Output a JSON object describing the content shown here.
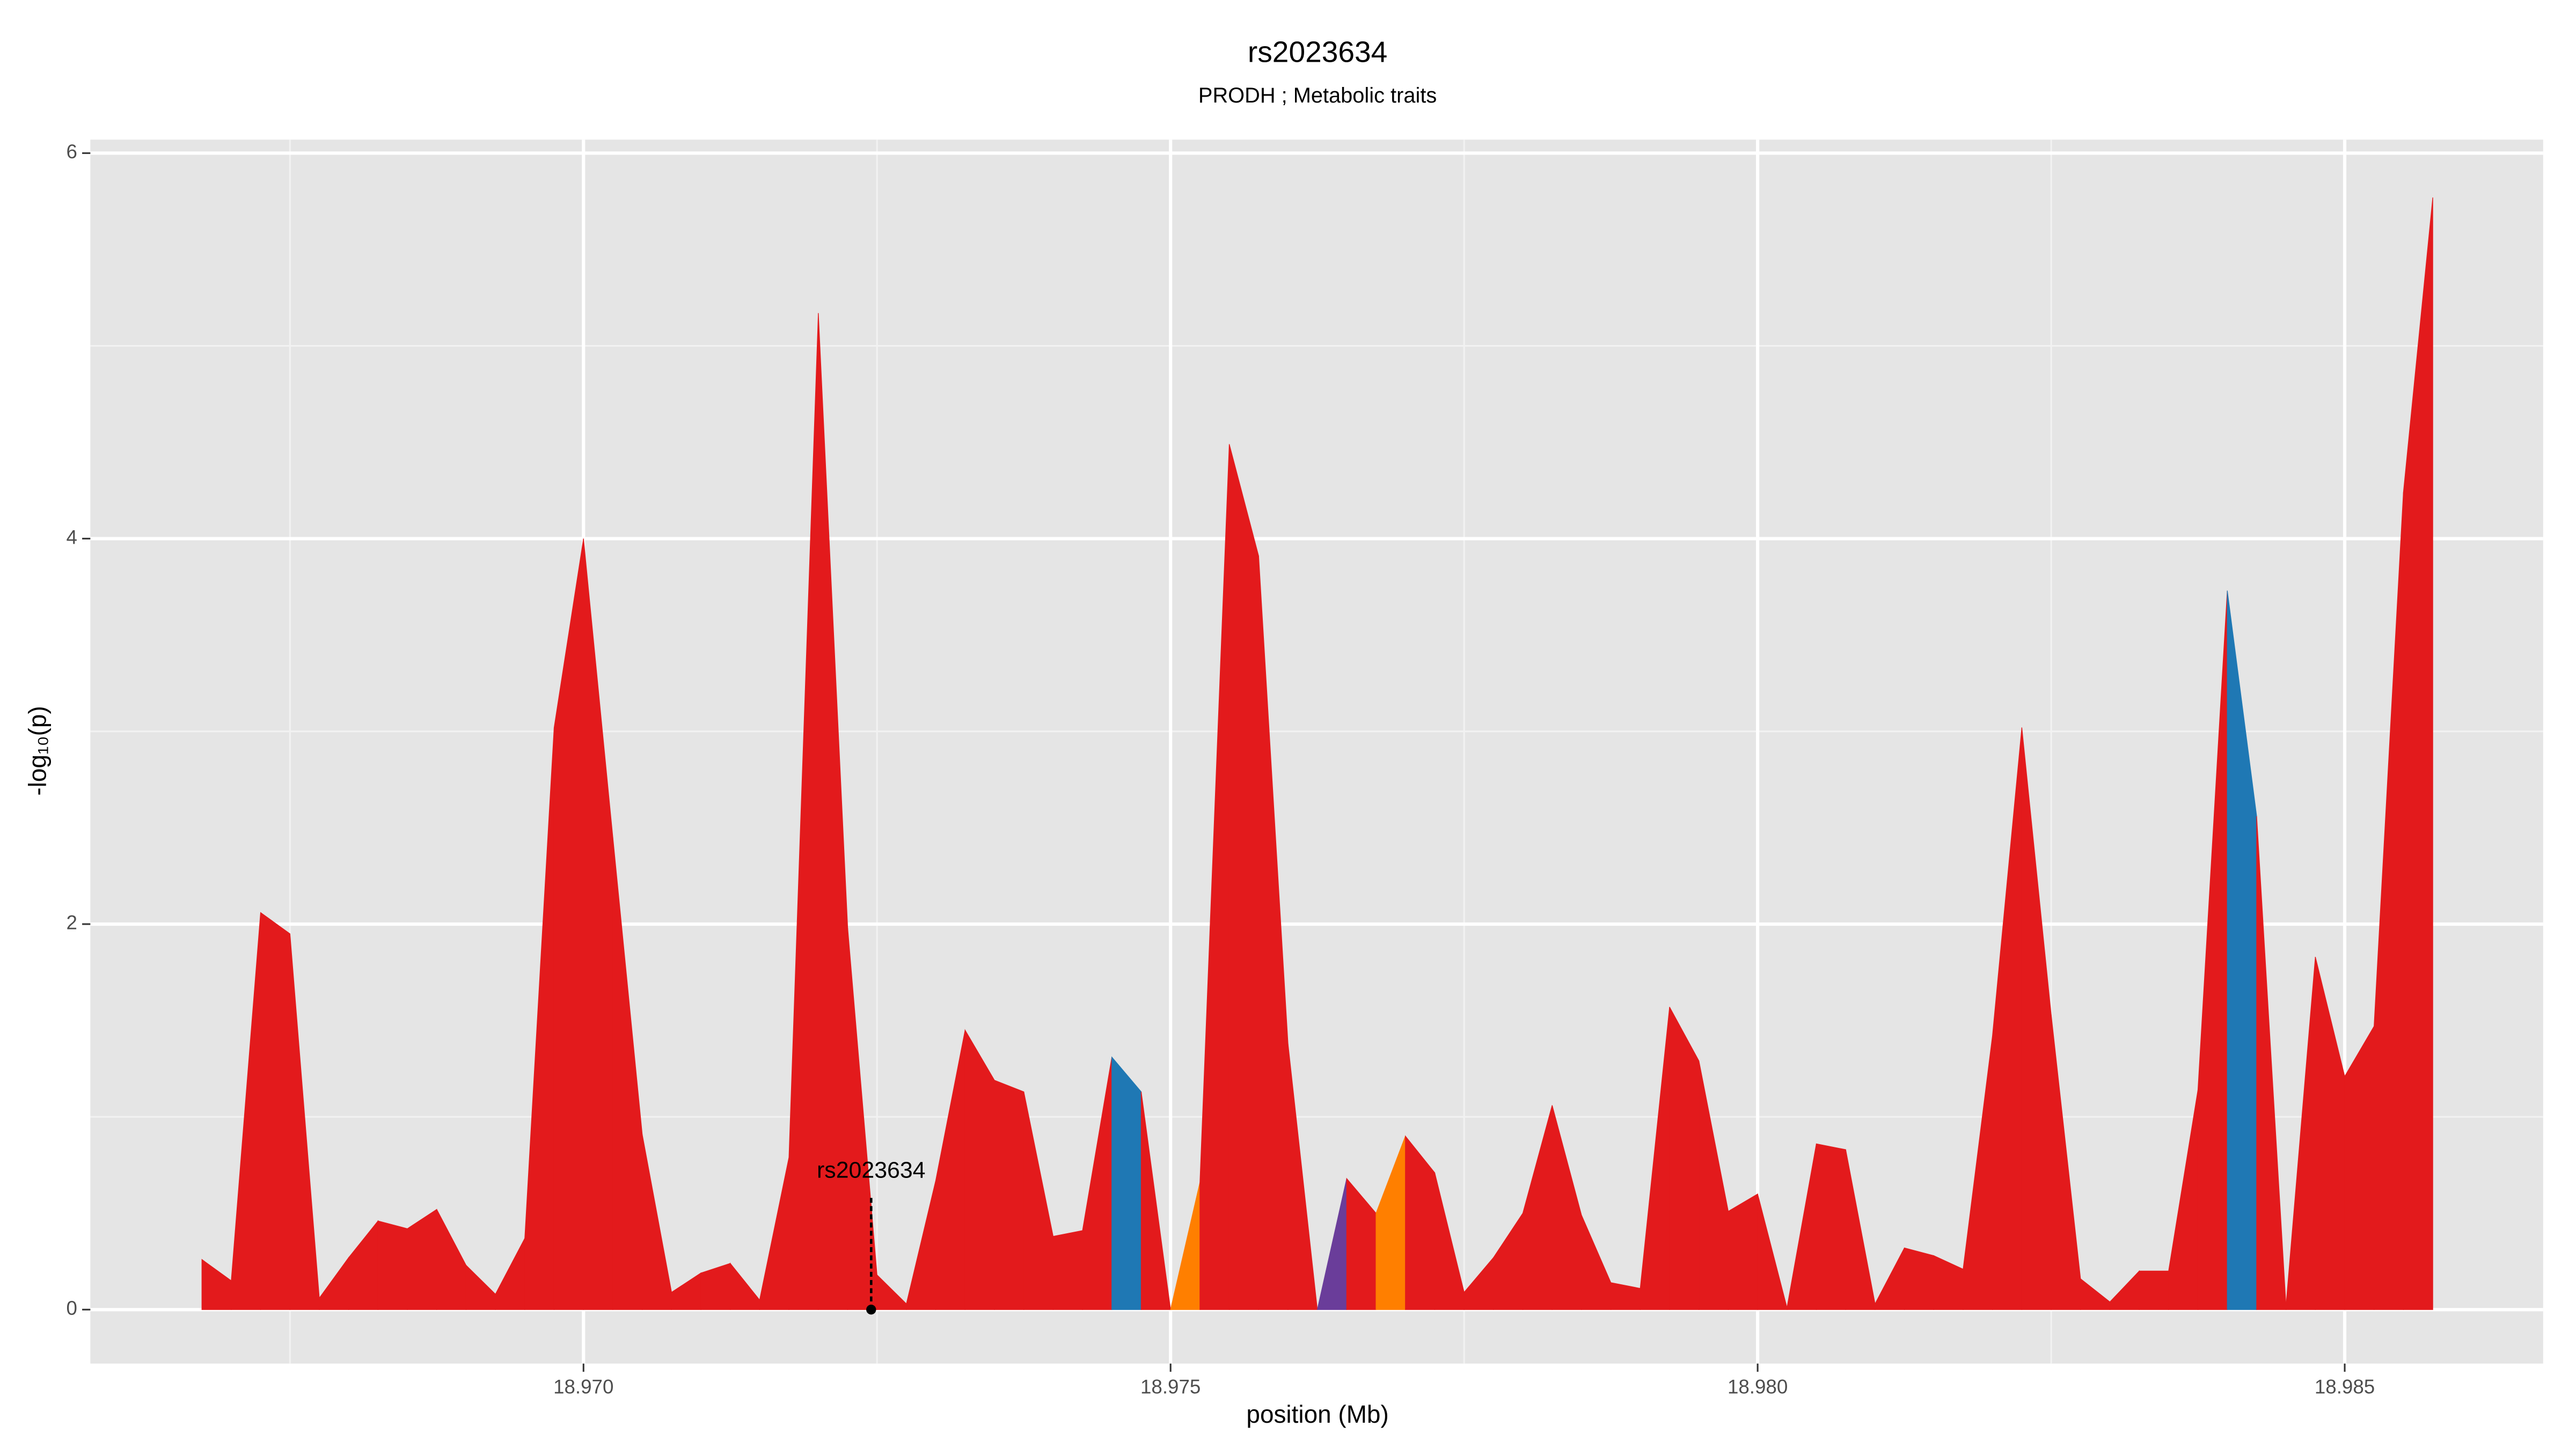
{
  "chart_data": {
    "type": "area",
    "title": "rs2023634",
    "subtitle": "PRODH ; Metabolic traits",
    "xlabel": "position (Mb)",
    "ylabel": "-log₁₀(p)",
    "x": [
      18.96675,
      18.967,
      18.96725,
      18.9675,
      18.96775,
      18.968,
      18.96825,
      18.9685,
      18.96875,
      18.969,
      18.96925,
      18.9695,
      18.96975,
      18.97,
      18.97025,
      18.9705,
      18.97075,
      18.971,
      18.97125,
      18.9715,
      18.97175,
      18.972,
      18.97225,
      18.9725,
      18.97275,
      18.973,
      18.97325,
      18.9735,
      18.97375,
      18.974,
      18.97425,
      18.9745,
      18.97475,
      18.975,
      18.97525,
      18.9755,
      18.97575,
      18.976,
      18.97625,
      18.9765,
      18.97675,
      18.977,
      18.97725,
      18.9775,
      18.97775,
      18.978,
      18.97825,
      18.9785,
      18.97875,
      18.979,
      18.97925,
      18.9795,
      18.97975,
      18.98,
      18.98025,
      18.9805,
      18.98075,
      18.981,
      18.98125,
      18.9815,
      18.98175,
      18.982,
      18.98225,
      18.9825,
      18.98275,
      18.983,
      18.98325,
      18.9835,
      18.98375,
      18.984,
      18.98425,
      18.9845,
      18.98475,
      18.985,
      18.98525,
      18.9855,
      18.98575
    ],
    "values": [
      0.26,
      0.15,
      2.06,
      1.95,
      0.06,
      0.27,
      0.46,
      0.42,
      0.52,
      0.23,
      0.08,
      0.37,
      3.02,
      4.0,
      2.45,
      0.91,
      0.09,
      0.19,
      0.24,
      0.05,
      0.79,
      5.17,
      1.98,
      0.18,
      0.03,
      0.67,
      1.45,
      1.19,
      1.13,
      0.38,
      0.41,
      1.31,
      1.13,
      0,
      0.66,
      4.49,
      3.91,
      1.38,
      0,
      0.68,
      0.5,
      0.9,
      0.71,
      0.09,
      0.27,
      0.5,
      1.06,
      0.49,
      0.14,
      0.11,
      1.57,
      1.29,
      0.51,
      0.6,
      0.01,
      0.86,
      0.83,
      0.03,
      0.32,
      0.28,
      0.21,
      1.42,
      3.02,
      1.53,
      0.16,
      0.04,
      0.2,
      0.2,
      1.14,
      3.73,
      2.56,
      0.02,
      1.83,
      1.21,
      1.47,
      4.24,
      5.77
    ],
    "colors": [
      "#e31a1c",
      "#e31a1c",
      "#e31a1c",
      "#e31a1c",
      "#e31a1c",
      "#e31a1c",
      "#e31a1c",
      "#e31a1c",
      "#e31a1c",
      "#e31a1c",
      "#e31a1c",
      "#e31a1c",
      "#e31a1c",
      "#e31a1c",
      "#e31a1c",
      "#e31a1c",
      "#e31a1c",
      "#e31a1c",
      "#e31a1c",
      "#e31a1c",
      "#e31a1c",
      "#e31a1c",
      "#e31a1c",
      "#e31a1c",
      "#e31a1c",
      "#e31a1c",
      "#e31a1c",
      "#e31a1c",
      "#e31a1c",
      "#e31a1c",
      "#e31a1c",
      "#1f78b4",
      "#e31a1c",
      "#ff7f00",
      "#e31a1c",
      "#e31a1c",
      "#e31a1c",
      "#e31a1c",
      "#6a3d9a",
      "#e31a1c",
      "#ff7f00",
      "#e31a1c",
      "#e31a1c",
      "#e31a1c",
      "#e31a1c",
      "#e31a1c",
      "#e31a1c",
      "#e31a1c",
      "#e31a1c",
      "#e31a1c",
      "#e31a1c",
      "#e31a1c",
      "#e31a1c",
      "#e31a1c",
      "#e31a1c",
      "#e31a1c",
      "#e31a1c",
      "#e31a1c",
      "#e31a1c",
      "#e31a1c",
      "#e31a1c",
      "#e31a1c",
      "#e31a1c",
      "#e31a1c",
      "#e31a1c",
      "#e31a1c",
      "#e31a1c",
      "#e31a1c",
      "#e31a1c",
      "#1f78b4",
      "#e31a1c",
      "#e31a1c",
      "#e31a1c",
      "#e31a1c",
      "#e31a1c",
      "#e31a1c",
      "#e31a1c"
    ],
    "annotation": {
      "text": "rs2023634",
      "x": 18.97245,
      "y": 0
    },
    "xlim": [
      18.9658,
      18.98669
    ],
    "ylim": [
      -0.28,
      6.07
    ],
    "xticks": [
      {
        "value": 18.97,
        "label": "18.970"
      },
      {
        "value": 18.975,
        "label": "18.975"
      },
      {
        "value": 18.98,
        "label": "18.980"
      },
      {
        "value": 18.985,
        "label": "18.985"
      }
    ],
    "yticks": [
      0,
      2,
      4,
      6
    ],
    "x_minor_ticks": [
      18.9675,
      18.9725,
      18.9775,
      18.9825
    ],
    "y_minor_ticks": [
      1,
      3,
      5
    ],
    "grid": true
  }
}
